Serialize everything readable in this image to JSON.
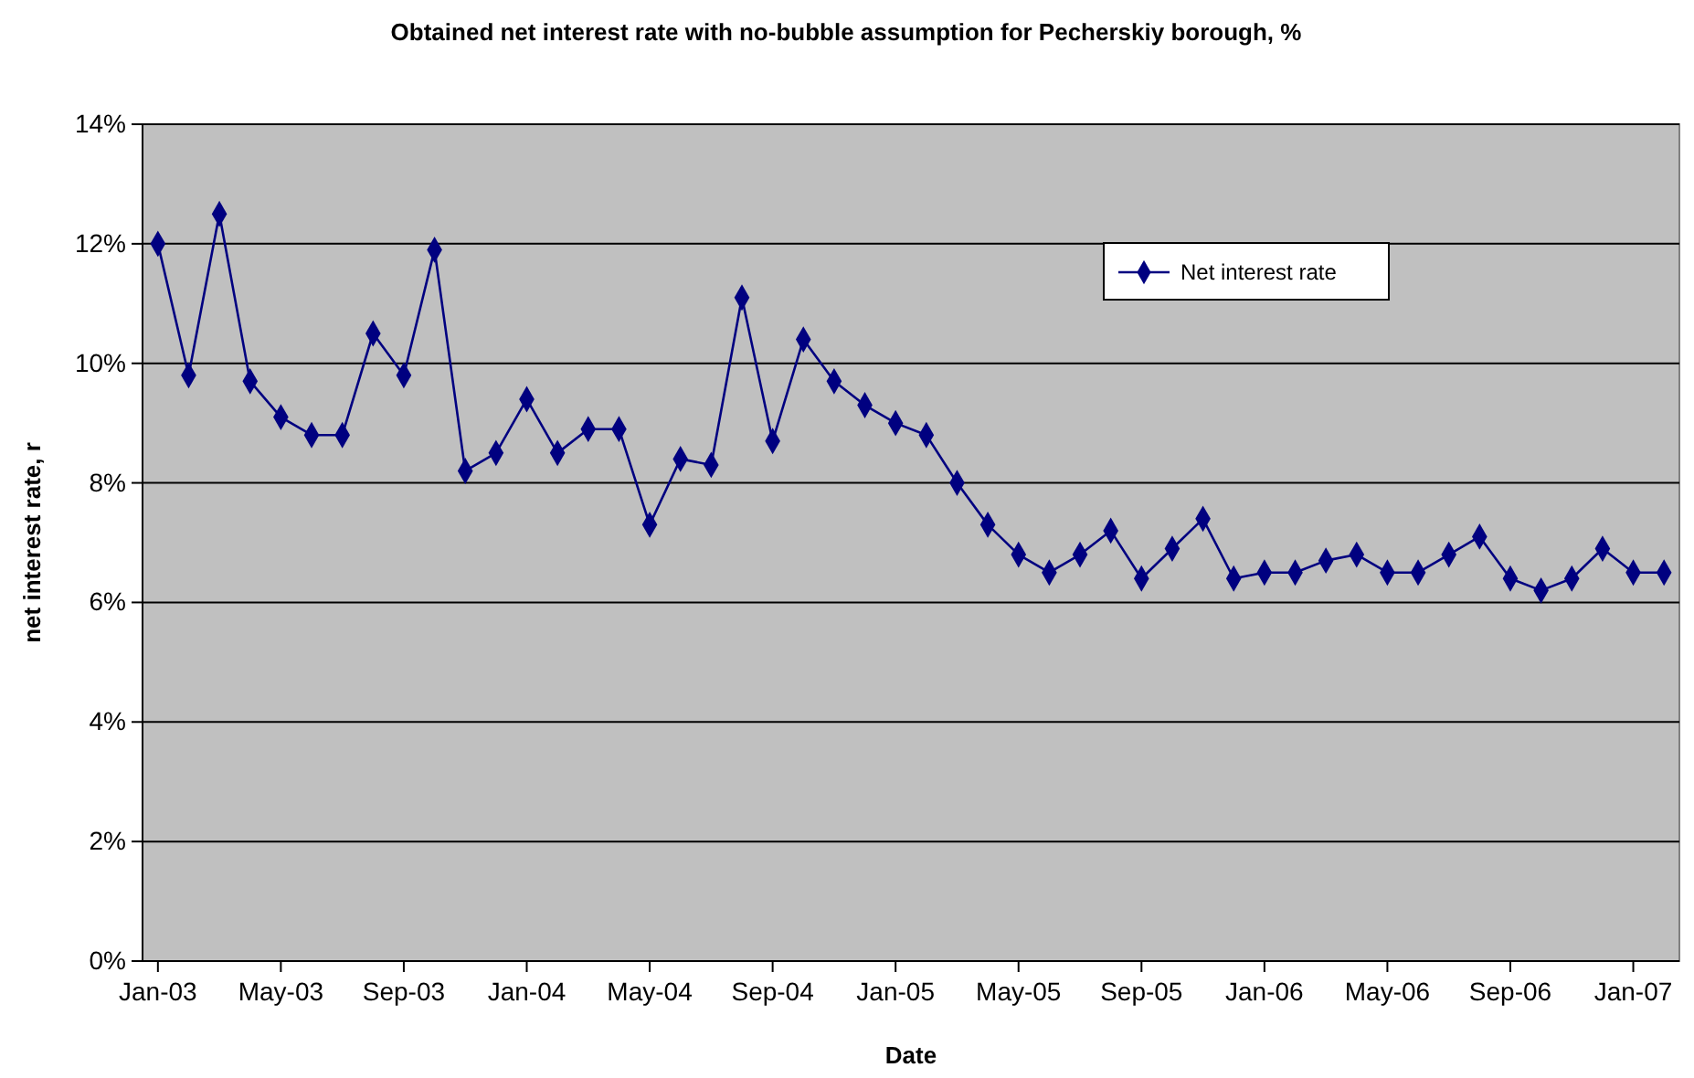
{
  "chart_data": {
    "type": "line",
    "title": "Obtained net interest rate with no-bubble assumption for Pecherskiy borough, %",
    "xlabel": "Date",
    "ylabel": "net interest rate, r",
    "categories": [
      "Jan-03",
      null,
      null,
      null,
      "May-03",
      null,
      null,
      null,
      "Sep-03",
      null,
      null,
      null,
      "Jan-04",
      null,
      null,
      null,
      "May-04",
      null,
      null,
      null,
      "Sep-04",
      null,
      null,
      null,
      "Jan-05",
      null,
      null,
      null,
      "May-05",
      null,
      null,
      null,
      "Sep-05",
      null,
      null,
      null,
      "Jan-06",
      null,
      null,
      null,
      "May-06",
      null,
      null,
      null,
      "Sep-06",
      null,
      null,
      null,
      "Jan-07",
      null
    ],
    "series": [
      {
        "name": "Net interest rate",
        "color": "#000080",
        "values": [
          12.0,
          9.8,
          12.5,
          9.7,
          9.1,
          8.8,
          8.8,
          10.5,
          9.8,
          11.9,
          8.2,
          8.5,
          9.4,
          8.5,
          8.9,
          8.9,
          7.3,
          8.4,
          8.3,
          11.1,
          8.7,
          10.4,
          9.7,
          9.3,
          9.0,
          8.8,
          8.0,
          7.3,
          6.8,
          6.5,
          6.8,
          7.2,
          6.4,
          6.9,
          7.4,
          6.4,
          6.5,
          6.5,
          6.7,
          6.8,
          6.5,
          6.5,
          6.8,
          7.1,
          6.4,
          6.2,
          6.4,
          6.9,
          6.5,
          6.5
        ]
      }
    ],
    "ylim": [
      0,
      14
    ],
    "yticks": [
      {
        "value": 0,
        "label": "0%"
      },
      {
        "value": 2,
        "label": "2%"
      },
      {
        "value": 4,
        "label": "4%"
      },
      {
        "value": 6,
        "label": "6%"
      },
      {
        "value": 8,
        "label": "8%"
      },
      {
        "value": 10,
        "label": "10%"
      },
      {
        "value": 12,
        "label": "12%"
      },
      {
        "value": 14,
        "label": "14%"
      }
    ],
    "grid": "y",
    "legend": "top right",
    "marker": "diamond",
    "line_style": "solid"
  }
}
